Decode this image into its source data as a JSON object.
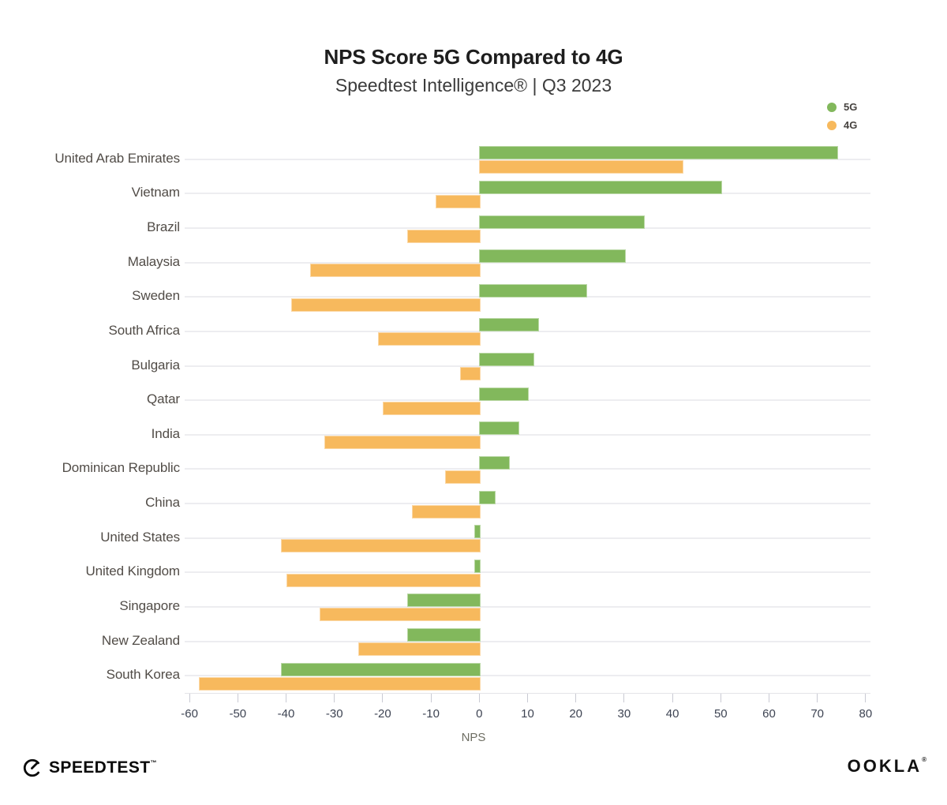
{
  "title": "NPS Score 5G Compared to 4G",
  "subtitle": "Speedtest Intelligence® | Q3 2023",
  "legend": [
    {
      "label": "5G",
      "color": "#82b85c"
    },
    {
      "label": "4G",
      "color": "#f7b95d"
    }
  ],
  "footer": {
    "speedtest_label": "SPEEDTEST",
    "ookla_label": "OOKLA"
  },
  "chart_data": {
    "type": "bar",
    "orientation": "horizontal",
    "title": "NPS Score 5G Compared to 4G",
    "subtitle": "Speedtest Intelligence® | Q3 2023",
    "xlabel": "NPS",
    "xlim": [
      -61,
      81
    ],
    "xticks": [
      -60,
      -50,
      -40,
      -30,
      -20,
      -10,
      0,
      10,
      20,
      30,
      40,
      50,
      60,
      70,
      80
    ],
    "grid": "horizontal-category-lines",
    "legend_position": "top-right",
    "categories": [
      "United Arab Emirates",
      "Vietnam",
      "Brazil",
      "Malaysia",
      "Sweden",
      "South Africa",
      "Bulgaria",
      "Qatar",
      "India",
      "Dominican Republic",
      "China",
      "United States",
      "United Kingdom",
      "Singapore",
      "New Zealand",
      "South Korea"
    ],
    "series": [
      {
        "name": "5G",
        "color": "#82b85c",
        "values": [
          74,
          50,
          34,
          30,
          22,
          12,
          11,
          10,
          8,
          6,
          3,
          -1,
          -1,
          -15,
          -15,
          -41
        ]
      },
      {
        "name": "4G",
        "color": "#f7b95d",
        "values": [
          42,
          -9,
          -15,
          -35,
          -39,
          -21,
          -4,
          -20,
          -32,
          -7,
          -14,
          -41,
          -40,
          -33,
          -25,
          -58
        ]
      }
    ]
  }
}
